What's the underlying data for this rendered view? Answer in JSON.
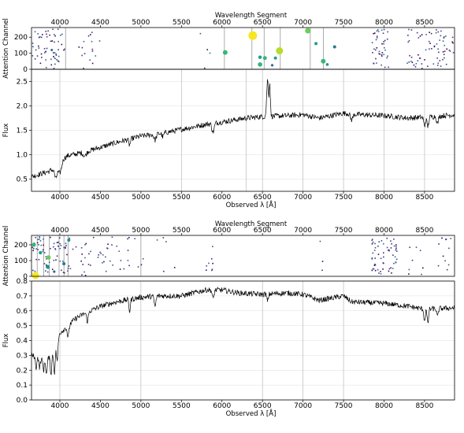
{
  "chart_data": [
    {
      "id": "top",
      "type": "line",
      "attention_panel": {
        "top_axis_label": "Wavelength Segment",
        "top_ticks": [
          4000,
          4500,
          5000,
          5500,
          6000,
          6500,
          7000,
          7500,
          8000,
          8500
        ],
        "ylabel": "Attention Channel",
        "yticks": [
          0,
          100,
          200
        ],
        "ylim": [
          0,
          260
        ],
        "highlight_lines": [
          4070,
          6030,
          6370,
          6520,
          6720,
          7090,
          7250
        ],
        "dots": [
          {
            "x": 6380,
            "y": 210,
            "r": 5.5,
            "color": "#f6e620"
          },
          {
            "x": 6710,
            "y": 115,
            "r": 4.5,
            "color": "#b7dd29"
          },
          {
            "x": 7060,
            "y": 240,
            "r": 3.5,
            "color": "#6ccd59"
          },
          {
            "x": 6040,
            "y": 105,
            "r": 3,
            "color": "#35b779"
          },
          {
            "x": 7250,
            "y": 50,
            "r": 3,
            "color": "#35b779"
          },
          {
            "x": 6470,
            "y": 30,
            "r": 2.8,
            "color": "#2fb47c"
          },
          {
            "x": 6530,
            "y": 70,
            "r": 2.5,
            "color": "#35b779"
          },
          {
            "x": 6470,
            "y": 75,
            "r": 2.2,
            "color": "#1f9e89"
          },
          {
            "x": 6660,
            "y": 70,
            "r": 2,
            "color": "#1f9e89"
          },
          {
            "x": 7160,
            "y": 160,
            "r": 2,
            "color": "#1f9e89"
          },
          {
            "x": 7390,
            "y": 140,
            "r": 2,
            "color": "#2a788e"
          },
          {
            "x": 7300,
            "y": 30,
            "r": 1.8,
            "color": "#21918c"
          },
          {
            "x": 6620,
            "y": 25,
            "r": 1.6,
            "color": "#31688e"
          },
          {
            "x": 3900,
            "y": 120,
            "r": 1.5,
            "color": "#31688e"
          }
        ],
        "scatter_bands": [
          [
            3660,
            4060,
            60
          ],
          [
            4200,
            4500,
            16
          ],
          [
            5700,
            5950,
            4
          ],
          [
            7850,
            8060,
            40
          ],
          [
            8280,
            8860,
            70
          ]
        ]
      },
      "spectrum": {
        "xlabel": "Observed λ [Å]",
        "ylabel": "Flux",
        "xlim": [
          3650,
          8870
        ],
        "ylim": [
          0.25,
          2.75
        ],
        "xticks": [
          4000,
          4500,
          5000,
          5500,
          6000,
          6500,
          7000,
          7500,
          8000,
          8500
        ],
        "yticks": [
          0.5,
          1.0,
          1.5,
          2.0,
          2.5
        ],
        "ytick_labels": [
          "0.5",
          "1.0",
          "1.5",
          "2.0",
          "2.5"
        ],
        "vertical_lines": [
          4000,
          5500,
          6300,
          6500,
          7000,
          7500,
          8000,
          8500
        ],
        "anchors": [
          [
            3650,
            0.55
          ],
          [
            3750,
            0.6
          ],
          [
            3850,
            0.65
          ],
          [
            3950,
            0.72
          ],
          [
            4000,
            0.88
          ],
          [
            4100,
            0.98
          ],
          [
            4300,
            1.05
          ],
          [
            4500,
            1.15
          ],
          [
            4700,
            1.25
          ],
          [
            5000,
            1.38
          ],
          [
            5300,
            1.45
          ],
          [
            5500,
            1.52
          ],
          [
            5800,
            1.62
          ],
          [
            6000,
            1.67
          ],
          [
            6300,
            1.75
          ],
          [
            6500,
            1.78
          ],
          [
            6800,
            1.8
          ],
          [
            7000,
            1.82
          ],
          [
            7200,
            1.75
          ],
          [
            7500,
            1.85
          ],
          [
            7700,
            1.82
          ],
          [
            8000,
            1.8
          ],
          [
            8300,
            1.75
          ],
          [
            8600,
            1.78
          ],
          [
            8870,
            1.82
          ]
        ],
        "noise": 0.055,
        "features": [
          [
            4000,
            -0.25,
            30
          ],
          [
            3950,
            -0.2,
            20
          ],
          [
            4310,
            -0.08,
            25
          ],
          [
            4860,
            -0.12,
            15
          ],
          [
            5175,
            -0.12,
            20
          ],
          [
            5270,
            -0.08,
            15
          ],
          [
            5890,
            -0.18,
            20
          ],
          [
            6563,
            0.75,
            15
          ],
          [
            6590,
            0.65,
            10
          ],
          [
            7600,
            -0.12,
            20
          ],
          [
            8500,
            -0.18,
            15
          ],
          [
            8540,
            -0.2,
            15
          ],
          [
            8660,
            -0.15,
            15
          ]
        ]
      }
    },
    {
      "id": "bottom",
      "type": "line",
      "attention_panel": {
        "top_axis_label": "Wavelength Segment",
        "top_ticks": [
          4000,
          4500,
          5000,
          5500,
          6000,
          6500,
          7000,
          7500,
          8000,
          8500
        ],
        "ylabel": "Attention Channel",
        "yticks": [
          0,
          100,
          200
        ],
        "ylim": [
          0,
          260
        ],
        "highlight_lines": [
          3720,
          3800,
          3870,
          3990,
          4050,
          4100,
          5000
        ],
        "dots": [
          {
            "x": 3700,
            "y": 5,
            "r": 4.5,
            "color": "#f6e620"
          },
          {
            "x": 3860,
            "y": 120,
            "r": 2.8,
            "color": "#6ccd59"
          },
          {
            "x": 3680,
            "y": 200,
            "r": 2.5,
            "color": "#35b779"
          },
          {
            "x": 3850,
            "y": 60,
            "r": 2.5,
            "color": "#21918c"
          },
          {
            "x": 3760,
            "y": 150,
            "r": 2.2,
            "color": "#1f9e89"
          },
          {
            "x": 4050,
            "y": 80,
            "r": 2,
            "color": "#2a788e"
          },
          {
            "x": 4110,
            "y": 230,
            "r": 2,
            "color": "#21918c"
          },
          {
            "x": 3930,
            "y": 30,
            "r": 1.6,
            "color": "#31688e"
          }
        ],
        "scatter_bands": [
          [
            3660,
            4120,
            70
          ],
          [
            4120,
            4700,
            34
          ],
          [
            4700,
            5100,
            14
          ],
          [
            5200,
            5450,
            5
          ],
          [
            5800,
            5900,
            8
          ],
          [
            7200,
            7300,
            3
          ],
          [
            7850,
            8160,
            60
          ],
          [
            8200,
            8500,
            8
          ],
          [
            8650,
            8860,
            12
          ]
        ]
      },
      "spectrum": {
        "xlabel": "Observed λ [Å]",
        "ylabel": "Flux",
        "xlim": [
          3650,
          8870
        ],
        "ylim": [
          0.0,
          0.8
        ],
        "xticks": [
          4000,
          4500,
          5000,
          5500,
          6000,
          6500,
          7000,
          7500,
          8000,
          8500
        ],
        "yticks": [
          0.0,
          0.1,
          0.2,
          0.3,
          0.4,
          0.5,
          0.6,
          0.7,
          0.8
        ],
        "ytick_labels": [
          "0.0",
          "0.1",
          "0.2",
          "0.3",
          "0.4",
          "0.5",
          "0.6",
          "0.7",
          "0.8"
        ],
        "vertical_lines": [
          4000,
          5000,
          6500,
          7000,
          7500
        ],
        "anchors": [
          [
            3650,
            0.3
          ],
          [
            3700,
            0.29
          ],
          [
            3800,
            0.26
          ],
          [
            3900,
            0.3
          ],
          [
            3950,
            0.35
          ],
          [
            4000,
            0.45
          ],
          [
            4100,
            0.5
          ],
          [
            4200,
            0.55
          ],
          [
            4300,
            0.58
          ],
          [
            4500,
            0.63
          ],
          [
            4700,
            0.66
          ],
          [
            5000,
            0.69
          ],
          [
            5200,
            0.7
          ],
          [
            5500,
            0.7
          ],
          [
            5800,
            0.74
          ],
          [
            6000,
            0.74
          ],
          [
            6200,
            0.72
          ],
          [
            6500,
            0.71
          ],
          [
            6800,
            0.72
          ],
          [
            7000,
            0.71
          ],
          [
            7200,
            0.67
          ],
          [
            7500,
            0.7
          ],
          [
            7600,
            0.66
          ],
          [
            8000,
            0.65
          ],
          [
            8300,
            0.63
          ],
          [
            8500,
            0.61
          ],
          [
            8870,
            0.62
          ]
        ],
        "noise": 0.018,
        "features": [
          [
            3705,
            -0.08,
            10
          ],
          [
            3750,
            -0.06,
            10
          ],
          [
            3800,
            -0.06,
            10
          ],
          [
            3835,
            -0.1,
            12
          ],
          [
            3890,
            -0.12,
            12
          ],
          [
            3933,
            -0.15,
            12
          ],
          [
            3968,
            -0.12,
            12
          ],
          [
            4102,
            -0.08,
            15
          ],
          [
            4340,
            -0.06,
            15
          ],
          [
            4861,
            -0.08,
            12
          ],
          [
            5175,
            -0.07,
            15
          ],
          [
            5890,
            -0.06,
            15
          ],
          [
            6563,
            -0.05,
            12
          ],
          [
            8500,
            -0.08,
            12
          ],
          [
            8540,
            -0.1,
            12
          ],
          [
            8660,
            -0.06,
            12
          ]
        ]
      }
    }
  ]
}
